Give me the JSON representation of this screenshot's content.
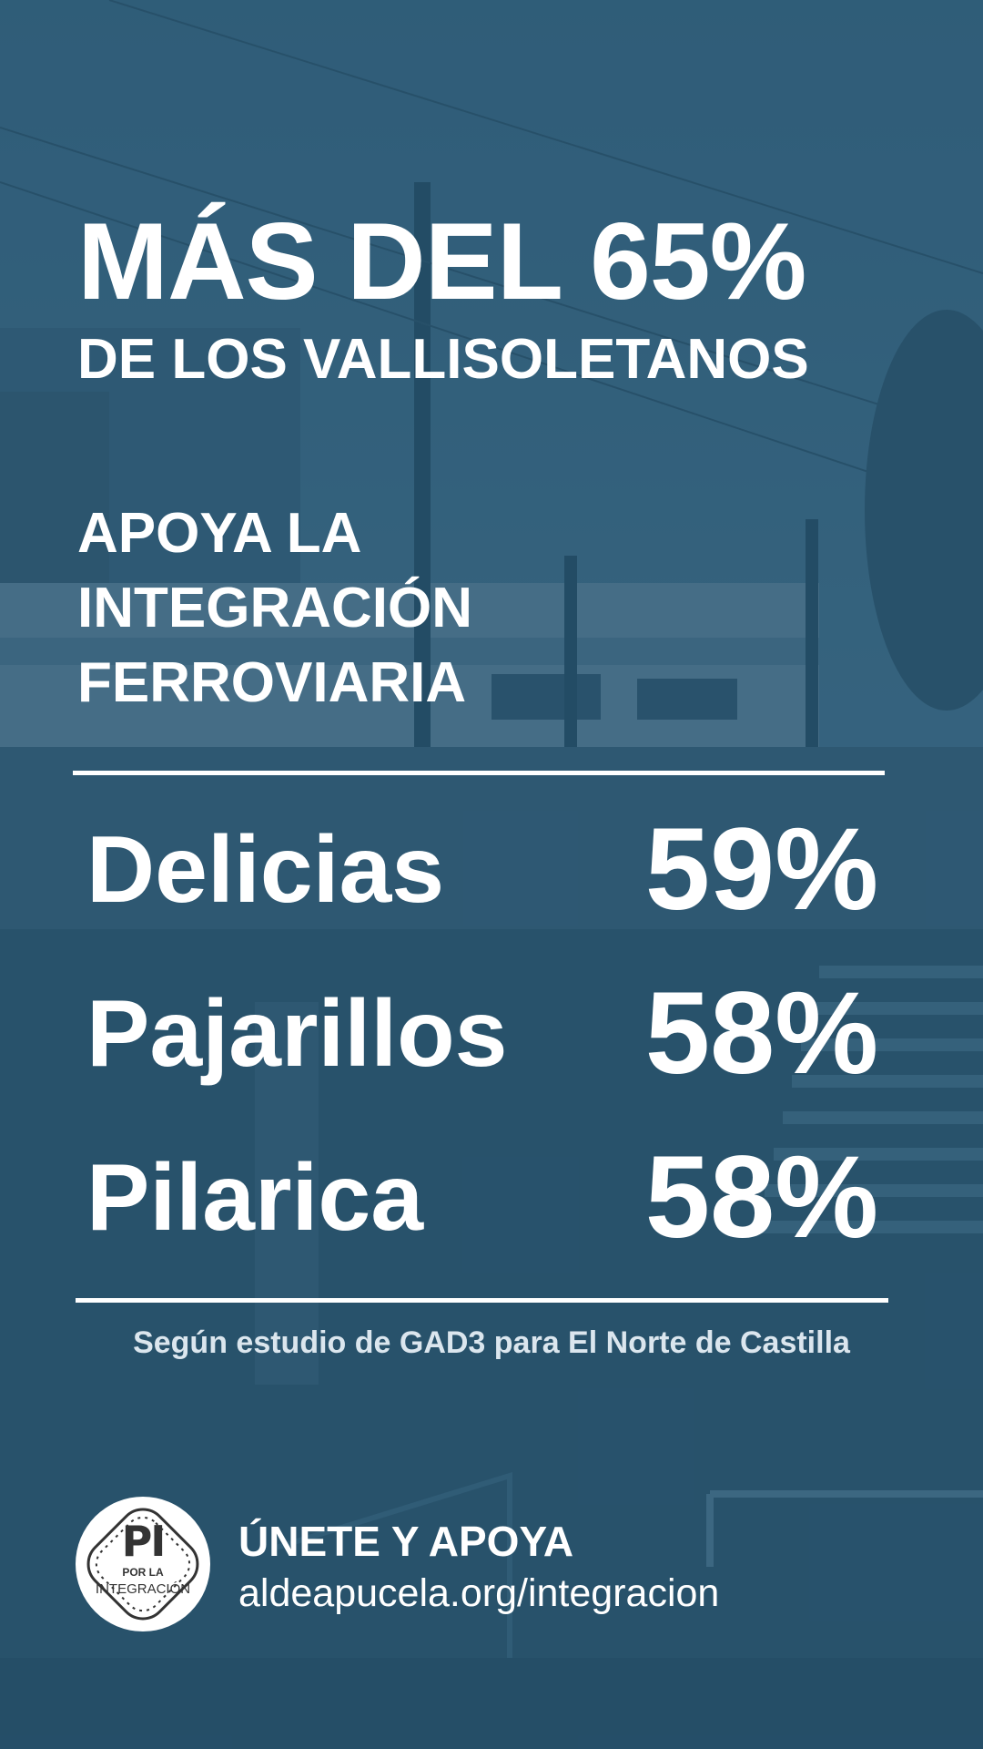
{
  "headline": {
    "line1": "MÁS DEL 65%",
    "line2": "DE LOS VALLISOLETANOS"
  },
  "subhead": {
    "lines": [
      "APOYA LA",
      "INTEGRACIÓN",
      "FERROVIARIA"
    ]
  },
  "stats": [
    {
      "label": "Delicias",
      "value": "59%"
    },
    {
      "label": "Pajarillos",
      "value": "58%"
    },
    {
      "label": "Pilarica",
      "value": "58%"
    }
  ],
  "source": "Según estudio de GAD3 para El Norte de Castilla",
  "logo": {
    "initials": "PI",
    "line1": "POR LA",
    "line2": "INTEGRACIÓN",
    "icon": "railway-track-logo-icon"
  },
  "cta": {
    "title": "ÚNETE Y APOYA",
    "url": "aldeapucela.org/integracion"
  },
  "colors": {
    "background": "#2b5670",
    "text": "#ffffff",
    "source_text": "#dbe6ee"
  }
}
